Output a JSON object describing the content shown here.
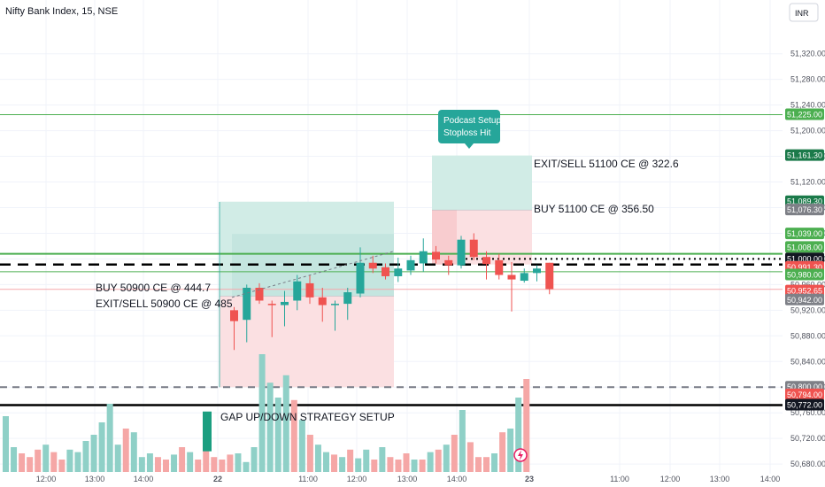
{
  "header": {
    "title": "Nifty Bank Index, 15, NSE",
    "currency_button": "INR"
  },
  "colors": {
    "up": "#26a69a",
    "down": "#ef5350",
    "green_line": "#4caf50",
    "red_line": "#f44336",
    "grid": "#f0f3fa",
    "axis_text": "#50535e",
    "target_zone": "#d1ece6",
    "stop_zone": "#fbe0e2"
  },
  "chart_data": {
    "type": "candlestick",
    "symbol": "Nifty Bank Index",
    "interval": "15",
    "exchange": "NSE",
    "ylim": [
      50665,
      51390
    ],
    "y_ticks": [
      "51,320.00",
      "51,280.00",
      "51,240.00",
      "51,200.00",
      "51,160.00",
      "51,120.00",
      "51,080.00",
      "51,040.00",
      "51,000.00",
      "50,960.00",
      "50,920.00",
      "50,880.00",
      "50,840.00",
      "50,800.00",
      "50,760.00",
      "50,720.00",
      "50,680.00"
    ],
    "y_tick_values": [
      51320,
      51280,
      51240,
      51200,
      51160,
      51120,
      51080,
      51040,
      51000,
      50960,
      50920,
      50880,
      50840,
      50800,
      50760,
      50720,
      50680
    ],
    "x_ticks": [
      {
        "label": "12:00",
        "bold": false
      },
      {
        "label": "13:00",
        "bold": false
      },
      {
        "label": "14:00",
        "bold": false
      },
      {
        "label": "22",
        "bold": true
      },
      {
        "label": "11:00",
        "bold": false
      },
      {
        "label": "12:00",
        "bold": false
      },
      {
        "label": "13:00",
        "bold": false
      },
      {
        "label": "14:00",
        "bold": false
      },
      {
        "label": "23",
        "bold": true
      },
      {
        "label": "11:00",
        "bold": false
      },
      {
        "label": "12:00",
        "bold": false
      },
      {
        "label": "13:00",
        "bold": false
      },
      {
        "label": "14:00",
        "bold": false
      }
    ],
    "candles": [
      {
        "o": 50920,
        "h": 50925,
        "l": 50858,
        "c": 50903
      },
      {
        "o": 50905,
        "h": 50960,
        "l": 50870,
        "c": 50955
      },
      {
        "o": 50955,
        "h": 50962,
        "l": 50930,
        "c": 50935
      },
      {
        "o": 50930,
        "h": 50935,
        "l": 50878,
        "c": 50928
      },
      {
        "o": 50928,
        "h": 50950,
        "l": 50895,
        "c": 50933
      },
      {
        "o": 50935,
        "h": 50975,
        "l": 50920,
        "c": 50965
      },
      {
        "o": 50962,
        "h": 50975,
        "l": 50930,
        "c": 50940
      },
      {
        "o": 50940,
        "h": 50955,
        "l": 50902,
        "c": 50928
      },
      {
        "o": 50928,
        "h": 50935,
        "l": 50888,
        "c": 50930
      },
      {
        "o": 50930,
        "h": 50955,
        "l": 50905,
        "c": 50948
      },
      {
        "o": 50946,
        "h": 51018,
        "l": 50940,
        "c": 50994
      },
      {
        "o": 50994,
        "h": 51005,
        "l": 50978,
        "c": 50985
      },
      {
        "o": 50987,
        "h": 50993,
        "l": 50968,
        "c": 50973
      },
      {
        "o": 50973,
        "h": 51002,
        "l": 50964,
        "c": 50985
      },
      {
        "o": 50982,
        "h": 51005,
        "l": 50975,
        "c": 50998
      },
      {
        "o": 50993,
        "h": 51032,
        "l": 50980,
        "c": 51012
      },
      {
        "o": 51011,
        "h": 51020,
        "l": 50993,
        "c": 50999
      },
      {
        "o": 50998,
        "h": 51005,
        "l": 50975,
        "c": 50990
      },
      {
        "o": 50990,
        "h": 51036,
        "l": 50985,
        "c": 51030
      },
      {
        "o": 51030,
        "h": 51040,
        "l": 50998,
        "c": 51003
      },
      {
        "o": 51003,
        "h": 51012,
        "l": 50968,
        "c": 50992
      },
      {
        "o": 50998,
        "h": 51008,
        "l": 50968,
        "c": 50975
      },
      {
        "o": 50975,
        "h": 50995,
        "l": 50918,
        "c": 50968
      },
      {
        "o": 50966,
        "h": 50985,
        "l": 50963,
        "c": 50978
      },
      {
        "o": 50978,
        "h": 50990,
        "l": 50965,
        "c": 50985
      },
      {
        "o": 50994,
        "h": 50994,
        "l": 50945,
        "c": 50953
      }
    ],
    "volumes": [
      {
        "v": 0.45,
        "up": true
      },
      {
        "v": 0.2,
        "up": true
      },
      {
        "v": 0.15,
        "up": false
      },
      {
        "v": 0.12,
        "up": false
      },
      {
        "v": 0.18,
        "up": false
      },
      {
        "v": 0.22,
        "up": true
      },
      {
        "v": 0.16,
        "up": false
      },
      {
        "v": 0.1,
        "up": false
      },
      {
        "v": 0.18,
        "up": true
      },
      {
        "v": 0.16,
        "up": true
      },
      {
        "v": 0.25,
        "up": true
      },
      {
        "v": 0.3,
        "up": true
      },
      {
        "v": 0.4,
        "up": true
      },
      {
        "v": 0.55,
        "up": true
      },
      {
        "v": 0.22,
        "up": true
      },
      {
        "v": 0.35,
        "up": false
      },
      {
        "v": 0.32,
        "up": true
      },
      {
        "v": 0.12,
        "up": true
      },
      {
        "v": 0.15,
        "up": true
      },
      {
        "v": 0.12,
        "up": false
      },
      {
        "v": 0.1,
        "up": false
      },
      {
        "v": 0.14,
        "up": true
      },
      {
        "v": 0.2,
        "up": false
      },
      {
        "v": 0.16,
        "up": true
      },
      {
        "v": 0.1,
        "up": false
      },
      {
        "v": 0.28,
        "up": false
      },
      {
        "v": 0.12,
        "up": false
      },
      {
        "v": 0.1,
        "up": false
      },
      {
        "v": 0.14,
        "up": false
      },
      {
        "v": 0.15,
        "up": true
      },
      {
        "v": 0.08,
        "up": true
      },
      {
        "v": 0.2,
        "up": true
      },
      {
        "v": 0.95,
        "up": true
      },
      {
        "v": 0.72,
        "up": true
      },
      {
        "v": 0.6,
        "up": true
      },
      {
        "v": 0.78,
        "up": true
      },
      {
        "v": 0.58,
        "up": false
      },
      {
        "v": 0.42,
        "up": true
      },
      {
        "v": 0.3,
        "up": false
      },
      {
        "v": 0.22,
        "up": true
      },
      {
        "v": 0.16,
        "up": true
      },
      {
        "v": 0.14,
        "up": false
      },
      {
        "v": 0.12,
        "up": true
      },
      {
        "v": 0.18,
        "up": false
      },
      {
        "v": 0.11,
        "up": true
      },
      {
        "v": 0.18,
        "up": true
      },
      {
        "v": 0.1,
        "up": false
      },
      {
        "v": 0.2,
        "up": true
      },
      {
        "v": 0.12,
        "up": false
      },
      {
        "v": 0.1,
        "up": false
      },
      {
        "v": 0.15,
        "up": false
      },
      {
        "v": 0.1,
        "up": true
      },
      {
        "v": 0.1,
        "up": false
      },
      {
        "v": 0.16,
        "up": true
      },
      {
        "v": 0.18,
        "up": false
      },
      {
        "v": 0.22,
        "up": true
      },
      {
        "v": 0.3,
        "up": false
      },
      {
        "v": 0.5,
        "up": true
      },
      {
        "v": 0.24,
        "up": false
      },
      {
        "v": 0.12,
        "up": false
      },
      {
        "v": 0.12,
        "up": false
      },
      {
        "v": 0.15,
        "up": true
      },
      {
        "v": 0.32,
        "up": false
      },
      {
        "v": 0.35,
        "up": true
      },
      {
        "v": 0.6,
        "up": true
      },
      {
        "v": 0.75,
        "up": false
      }
    ],
    "horizontal_lines": [
      {
        "price": 51225.0,
        "style": "solid-green"
      },
      {
        "price": 51008.0,
        "style": "solid-green-thick"
      },
      {
        "price": 50991.3,
        "style": "dashed-black"
      },
      {
        "price": 51000.0,
        "style": "dotted-black"
      },
      {
        "price": 50980.0,
        "style": "solid-green"
      },
      {
        "price": 50952.65,
        "style": "thin-red"
      },
      {
        "price": 50800.0,
        "style": "dashed-gray"
      },
      {
        "price": 50772.0,
        "style": "solid-black"
      }
    ],
    "price_labels": [
      {
        "text": "51,225.00",
        "price": 51225.0,
        "color": "#4caf50"
      },
      {
        "text": "51,161.30",
        "price": 51161.3,
        "color": "#1b7a4a"
      },
      {
        "text": "51,089.30",
        "price": 51089.3,
        "color": "#1b7a4a"
      },
      {
        "text": "51,076.30",
        "price": 51076.3,
        "color": "#7e8087"
      },
      {
        "text": "51,039.00",
        "price": 51039.0,
        "color": "#4caf50"
      },
      {
        "text": "51,008.00",
        "price": 51018.0,
        "color": "#4caf50"
      },
      {
        "text": "51,000.00",
        "price": 51000.0,
        "color": "#131722"
      },
      {
        "text": "50,991.30",
        "price": 50987.0,
        "color": "#ef5350"
      },
      {
        "text": "50,980.00",
        "price": 50975.0,
        "color": "#4caf50"
      },
      {
        "text": "50,952.65",
        "price": 50950.0,
        "color": "#ef5350"
      },
      {
        "text": "50,942.00",
        "price": 50936.0,
        "color": "#7e8087"
      },
      {
        "text": "50,800.00",
        "price": 50800.0,
        "color": "#7e8087"
      },
      {
        "text": "50,794.00",
        "price": 50788.0,
        "color": "#ef5350"
      },
      {
        "text": "50,772.00",
        "price": 50772.0,
        "color": "#131722"
      }
    ],
    "annotations": [
      {
        "text": "BUY 50900 CE @ 444.7"
      },
      {
        "text": "EXIT/SELL 50900 CE @ 485"
      },
      {
        "text": "EXIT/SELL 51100 CE @ 322.6"
      },
      {
        "text": "BUY 51100 CE @ 356.50"
      },
      {
        "text": "GAP UP/DOWN STRATEGY SETUP"
      }
    ],
    "callout": {
      "line1": "Podcast Setup",
      "line2": "Stoploss Hit"
    }
  }
}
